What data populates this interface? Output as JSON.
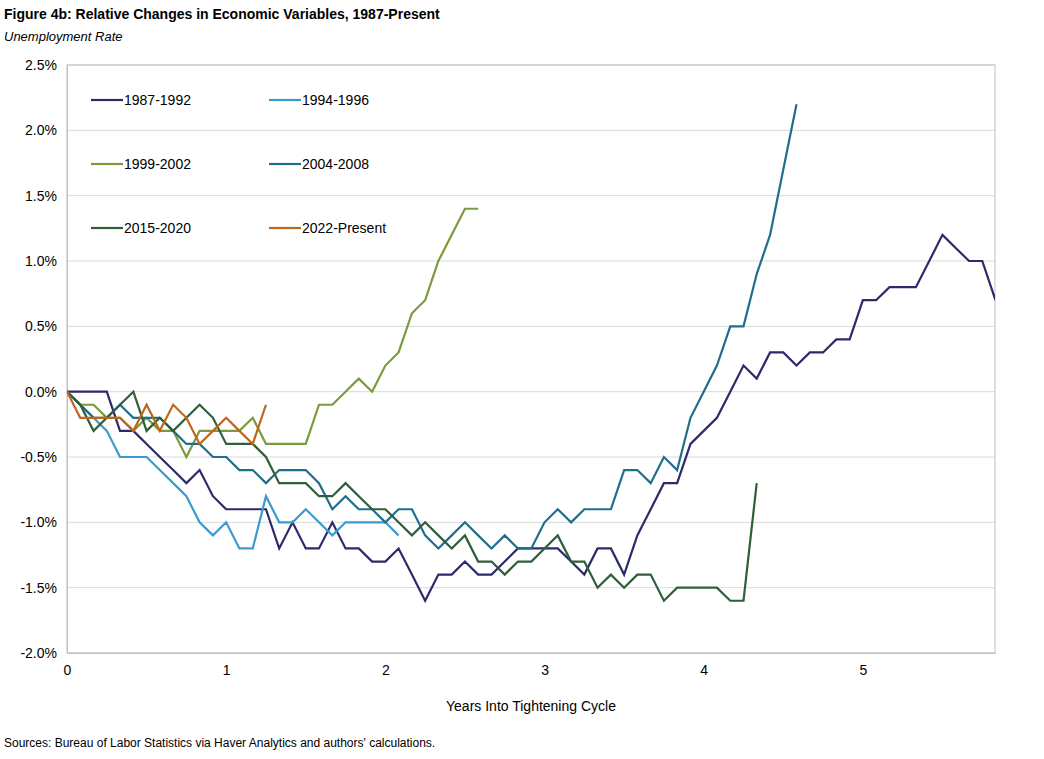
{
  "chart_data": {
    "type": "line",
    "title": "Figure 4b: Relative Changes in Economic Variables, 1987-Present",
    "subtitle": "Unemployment Rate",
    "x_label": "Years Into Tightening Cycle",
    "source": "Sources: Bureau of Labor Statistics via Haver Analytics and authors' calculations.",
    "legend": "upper left",
    "grid": true,
    "xlim": [
      0,
      5.83
    ],
    "xticks": [
      0,
      1,
      2,
      3,
      4,
      5
    ],
    "ylim": [
      -2,
      2.5
    ],
    "yticks": [
      {
        "value": -2,
        "label": "-2.0%"
      },
      {
        "value": -1.5,
        "label": "-1.5%"
      },
      {
        "value": -1,
        "label": "-1.0%"
      },
      {
        "value": -0.5,
        "label": "-0.5%"
      },
      {
        "value": 0,
        "label": "0.0%"
      },
      {
        "value": 0.5,
        "label": "0.5%"
      },
      {
        "value": 1,
        "label": "1.0%"
      },
      {
        "value": 1.5,
        "label": "1.5%"
      },
      {
        "value": 2,
        "label": "2.0%"
      },
      {
        "value": 2.5,
        "label": "2.5%"
      }
    ],
    "x": [
      0,
      0.083,
      0.167,
      0.25,
      0.333,
      0.417,
      0.5,
      0.583,
      0.667,
      0.75,
      0.833,
      0.917,
      1,
      1.083,
      1.167,
      1.25,
      1.333,
      1.417,
      1.5,
      1.583,
      1.667,
      1.75,
      1.833,
      1.917,
      2,
      2.083,
      2.167,
      2.25,
      2.333,
      2.417,
      2.5,
      2.583,
      2.667,
      2.75,
      2.833,
      2.917,
      3,
      3.083,
      3.167,
      3.25,
      3.333,
      3.417,
      3.5,
      3.583,
      3.667,
      3.75,
      3.833,
      3.917,
      4,
      4.083,
      4.167,
      4.25,
      4.333,
      4.417,
      4.5,
      4.583,
      4.667,
      4.75,
      4.833,
      4.917,
      5,
      5.083,
      5.167,
      5.25,
      5.333,
      5.417,
      5.5,
      5.583,
      5.667,
      5.75,
      5.833
    ],
    "series": [
      {
        "name": "1987-1992",
        "color": "#2d2a6b",
        "values": [
          0,
          0,
          0,
          0,
          -0.3,
          -0.3,
          -0.4,
          -0.5,
          -0.6,
          -0.7,
          -0.6,
          -0.8,
          -0.9,
          -0.9,
          -0.9,
          -0.9,
          -1.2,
          -1.0,
          -1.2,
          -1.2,
          -1.0,
          -1.2,
          -1.2,
          -1.3,
          -1.3,
          -1.2,
          -1.4,
          -1.6,
          -1.4,
          -1.4,
          -1.3,
          -1.4,
          -1.4,
          -1.3,
          -1.2,
          -1.2,
          -1.2,
          -1.2,
          -1.3,
          -1.4,
          -1.2,
          -1.2,
          -1.4,
          -1.1,
          -0.9,
          -0.7,
          -0.7,
          -0.4,
          -0.3,
          -0.2,
          0.0,
          0.2,
          0.1,
          0.3,
          0.3,
          0.2,
          0.3,
          0.3,
          0.4,
          0.4,
          0.7,
          0.7,
          0.8,
          0.8,
          0.8,
          1.0,
          1.2,
          1.1,
          1.0,
          1.0,
          0.7
        ]
      },
      {
        "name": "1994-1996",
        "color": "#3b9ad0",
        "values": [
          0,
          -0.1,
          -0.2,
          -0.3,
          -0.5,
          -0.5,
          -0.5,
          -0.6,
          -0.7,
          -0.8,
          -1.0,
          -1.1,
          -1.0,
          -1.2,
          -1.2,
          -0.8,
          -1.0,
          -1.0,
          -0.9,
          -1.0,
          -1.1,
          -1.0,
          -1.0,
          -1.0,
          -1.0,
          -1.1,
          null,
          null,
          null,
          null,
          null,
          null,
          null,
          null,
          null,
          null,
          null,
          null,
          null,
          null,
          null,
          null,
          null,
          null,
          null,
          null,
          null,
          null,
          null,
          null,
          null,
          null,
          null,
          null,
          null,
          null,
          null,
          null,
          null,
          null,
          null,
          null,
          null,
          null,
          null,
          null,
          null,
          null,
          null,
          null,
          null
        ]
      },
      {
        "name": "1999-2002",
        "color": "#7b9a3c",
        "values": [
          0,
          -0.1,
          -0.1,
          -0.2,
          -0.2,
          -0.3,
          -0.2,
          -0.3,
          -0.3,
          -0.5,
          -0.3,
          -0.3,
          -0.3,
          -0.3,
          -0.2,
          -0.4,
          -0.4,
          -0.4,
          -0.4,
          -0.1,
          -0.1,
          0.0,
          0.1,
          0.0,
          0.2,
          0.3,
          0.6,
          0.7,
          1.0,
          1.2,
          1.4,
          1.4,
          null,
          null,
          null,
          null,
          null,
          null,
          null,
          null,
          null,
          null,
          null,
          null,
          null,
          null,
          null,
          null,
          null,
          null,
          null,
          null,
          null,
          null,
          null,
          null,
          null,
          null,
          null,
          null,
          null,
          null,
          null,
          null,
          null,
          null,
          null,
          null,
          null,
          null,
          null
        ]
      },
      {
        "name": "2004-2008",
        "color": "#1f6e8c",
        "values": [
          0,
          -0.1,
          -0.2,
          -0.2,
          -0.1,
          -0.2,
          -0.2,
          -0.2,
          -0.3,
          -0.4,
          -0.4,
          -0.5,
          -0.5,
          -0.6,
          -0.6,
          -0.7,
          -0.6,
          -0.6,
          -0.6,
          -0.7,
          -0.9,
          -0.8,
          -0.9,
          -0.9,
          -1.0,
          -0.9,
          -0.9,
          -1.1,
          -1.2,
          -1.1,
          -1.0,
          -1.1,
          -1.2,
          -1.1,
          -1.2,
          -1.2,
          -1.0,
          -0.9,
          -1.0,
          -0.9,
          -0.9,
          -0.9,
          -0.6,
          -0.6,
          -0.7,
          -0.5,
          -0.6,
          -0.2,
          0.0,
          0.2,
          0.5,
          0.5,
          0.9,
          1.2,
          1.7,
          2.2,
          null,
          null,
          null,
          null,
          null,
          null,
          null,
          null,
          null,
          null,
          null,
          null,
          null,
          null,
          null
        ]
      },
      {
        "name": "2015-2020",
        "color": "#2f5e3b",
        "values": [
          0,
          -0.1,
          -0.3,
          -0.2,
          -0.1,
          0.0,
          -0.3,
          -0.2,
          -0.3,
          -0.2,
          -0.1,
          -0.2,
          -0.4,
          -0.4,
          -0.4,
          -0.5,
          -0.7,
          -0.7,
          -0.7,
          -0.8,
          -0.8,
          -0.7,
          -0.8,
          -0.9,
          -0.9,
          -1.0,
          -1.1,
          -1.0,
          -1.1,
          -1.2,
          -1.1,
          -1.3,
          -1.3,
          -1.4,
          -1.3,
          -1.3,
          -1.2,
          -1.1,
          -1.3,
          -1.3,
          -1.5,
          -1.4,
          -1.5,
          -1.4,
          -1.4,
          -1.6,
          -1.5,
          -1.5,
          -1.5,
          -1.5,
          -1.6,
          -1.6,
          -0.7,
          null,
          null,
          null,
          null,
          null,
          null,
          null,
          null,
          null,
          null,
          null,
          null,
          null,
          null,
          null,
          null,
          null,
          null
        ]
      },
      {
        "name": "2022-Present",
        "color": "#c0661a",
        "values": [
          0,
          -0.2,
          -0.2,
          -0.2,
          -0.2,
          -0.3,
          -0.1,
          -0.3,
          -0.1,
          -0.2,
          -0.4,
          -0.3,
          -0.2,
          -0.3,
          -0.4,
          -0.1,
          null,
          null,
          null,
          null,
          null,
          null,
          null,
          null,
          null,
          null,
          null,
          null,
          null,
          null,
          null,
          null,
          null,
          null,
          null,
          null,
          null,
          null,
          null,
          null,
          null,
          null,
          null,
          null,
          null,
          null,
          null,
          null,
          null,
          null,
          null,
          null,
          null,
          null,
          null,
          null,
          null,
          null,
          null,
          null,
          null,
          null,
          null,
          null,
          null,
          null,
          null,
          null,
          null,
          null,
          null
        ]
      }
    ]
  }
}
